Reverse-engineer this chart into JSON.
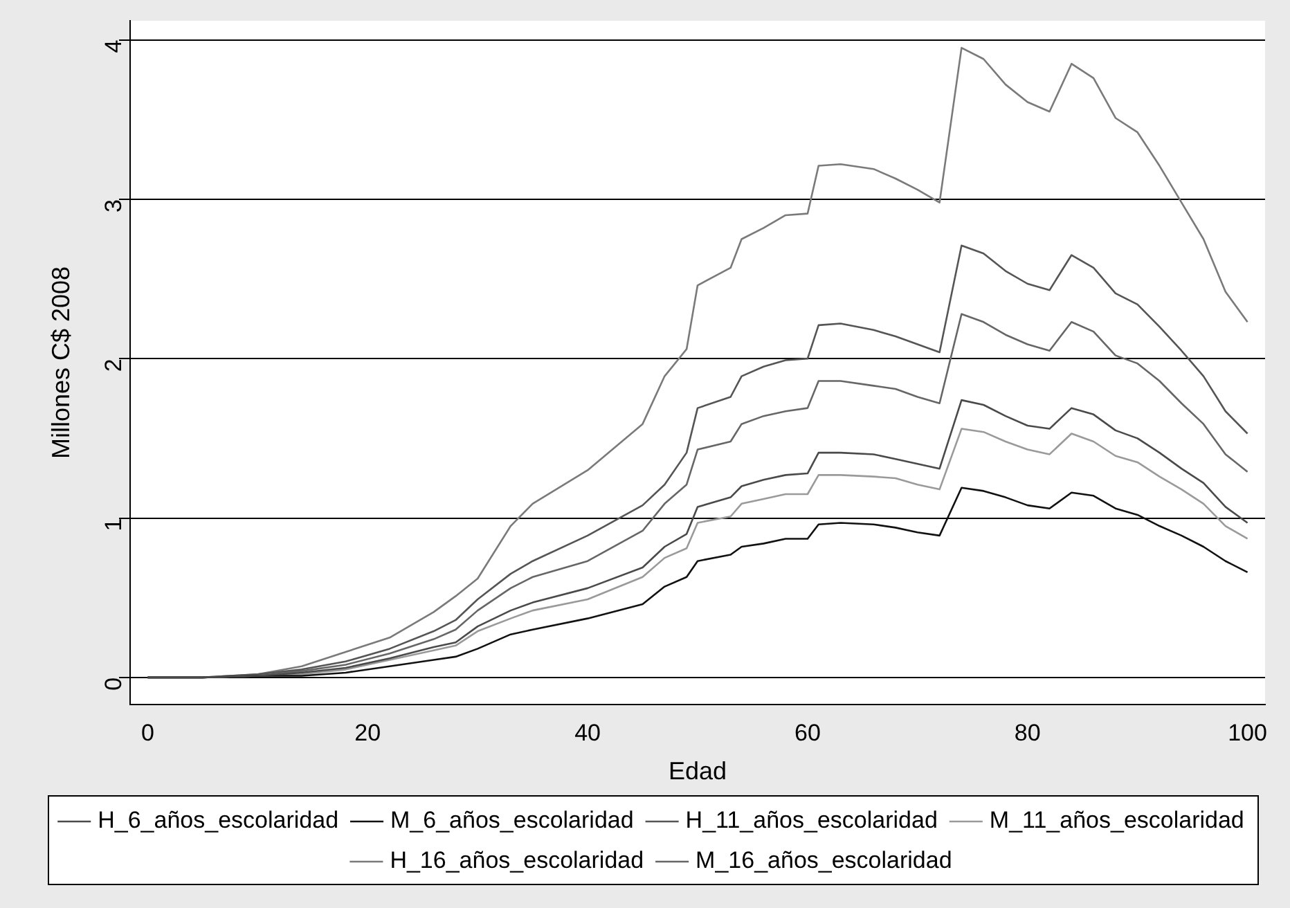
{
  "chart_data": {
    "type": "line",
    "xlabel": "Edad",
    "ylabel": "Millones C$ 2008",
    "x": [
      0,
      5,
      10,
      14,
      18,
      22,
      26,
      28,
      30,
      33,
      35,
      40,
      45,
      47,
      49,
      50,
      53,
      54,
      56,
      58,
      60,
      61,
      63,
      66,
      68,
      70,
      72,
      74,
      76,
      78,
      80,
      82,
      84,
      86,
      88,
      90,
      92,
      94,
      96,
      98,
      100
    ],
    "series": [
      {
        "name": "H_6_años_escolaridad",
        "color": "#4a4a4a",
        "values": [
          0,
          0,
          0.01,
          0.03,
          0.06,
          0.12,
          0.19,
          0.22,
          0.32,
          0.42,
          0.47,
          0.56,
          0.69,
          0.82,
          0.9,
          1.07,
          1.13,
          1.2,
          1.24,
          1.27,
          1.28,
          1.41,
          1.41,
          1.4,
          1.37,
          1.34,
          1.31,
          1.74,
          1.71,
          1.64,
          1.58,
          1.56,
          1.69,
          1.65,
          1.55,
          1.5,
          1.41,
          1.31,
          1.22,
          1.07,
          0.97
        ]
      },
      {
        "name": "M_6_años_escolaridad",
        "color": "#111111",
        "values": [
          0,
          0,
          0.01,
          0.01,
          0.03,
          0.07,
          0.11,
          0.13,
          0.18,
          0.27,
          0.3,
          0.37,
          0.46,
          0.57,
          0.63,
          0.73,
          0.77,
          0.82,
          0.84,
          0.87,
          0.87,
          0.96,
          0.97,
          0.96,
          0.94,
          0.91,
          0.89,
          1.19,
          1.17,
          1.13,
          1.08,
          1.06,
          1.16,
          1.14,
          1.06,
          1.02,
          0.95,
          0.89,
          0.82,
          0.73,
          0.66
        ]
      },
      {
        "name": "H_11_años_escolaridad",
        "color": "#555555",
        "values": [
          0,
          0,
          0.02,
          0.05,
          0.1,
          0.18,
          0.29,
          0.36,
          0.49,
          0.65,
          0.73,
          0.89,
          1.08,
          1.21,
          1.41,
          1.69,
          1.76,
          1.89,
          1.95,
          1.99,
          2.0,
          2.21,
          2.22,
          2.18,
          2.14,
          2.09,
          2.04,
          2.71,
          2.66,
          2.55,
          2.47,
          2.43,
          2.65,
          2.57,
          2.41,
          2.34,
          2.2,
          2.05,
          1.89,
          1.67,
          1.53
        ]
      },
      {
        "name": "M_11_años_escolaridad",
        "color": "#9a9a9a",
        "values": [
          0,
          0,
          0.01,
          0.02,
          0.05,
          0.11,
          0.17,
          0.2,
          0.29,
          0.37,
          0.42,
          0.49,
          0.63,
          0.75,
          0.81,
          0.97,
          1.01,
          1.09,
          1.12,
          1.15,
          1.15,
          1.27,
          1.27,
          1.26,
          1.25,
          1.21,
          1.18,
          1.56,
          1.54,
          1.48,
          1.43,
          1.4,
          1.53,
          1.48,
          1.39,
          1.35,
          1.26,
          1.18,
          1.09,
          0.95,
          0.87
        ]
      },
      {
        "name": "H_16_años_escolaridad",
        "color": "#7a7a7a",
        "values": [
          0,
          0,
          0.02,
          0.07,
          0.16,
          0.25,
          0.41,
          0.51,
          0.62,
          0.95,
          1.09,
          1.3,
          1.59,
          1.89,
          2.06,
          2.46,
          2.57,
          2.75,
          2.82,
          2.9,
          2.91,
          3.21,
          3.22,
          3.19,
          3.13,
          3.06,
          2.98,
          3.95,
          3.88,
          3.72,
          3.61,
          3.55,
          3.85,
          3.76,
          3.51,
          3.42,
          3.21,
          2.98,
          2.75,
          2.42,
          2.23
        ]
      },
      {
        "name": "M_16_años_escolaridad",
        "color": "#666666",
        "values": [
          0,
          0,
          0.01,
          0.04,
          0.08,
          0.15,
          0.24,
          0.3,
          0.42,
          0.56,
          0.63,
          0.73,
          0.92,
          1.09,
          1.21,
          1.43,
          1.48,
          1.59,
          1.64,
          1.67,
          1.69,
          1.86,
          1.86,
          1.83,
          1.81,
          1.76,
          1.72,
          2.28,
          2.23,
          2.15,
          2.09,
          2.05,
          2.23,
          2.17,
          2.02,
          1.97,
          1.86,
          1.72,
          1.59,
          1.4,
          1.29
        ]
      }
    ],
    "xlim": [
      -1.6,
      101.6
    ],
    "xticks": [
      0,
      20,
      40,
      60,
      80,
      100
    ],
    "ylim": [
      -0.17,
      4.12
    ],
    "yticks": [
      0,
      1,
      2,
      3,
      4
    ],
    "grid": "y",
    "legend": "bottom",
    "marker": "none",
    "line_style": "solid"
  }
}
